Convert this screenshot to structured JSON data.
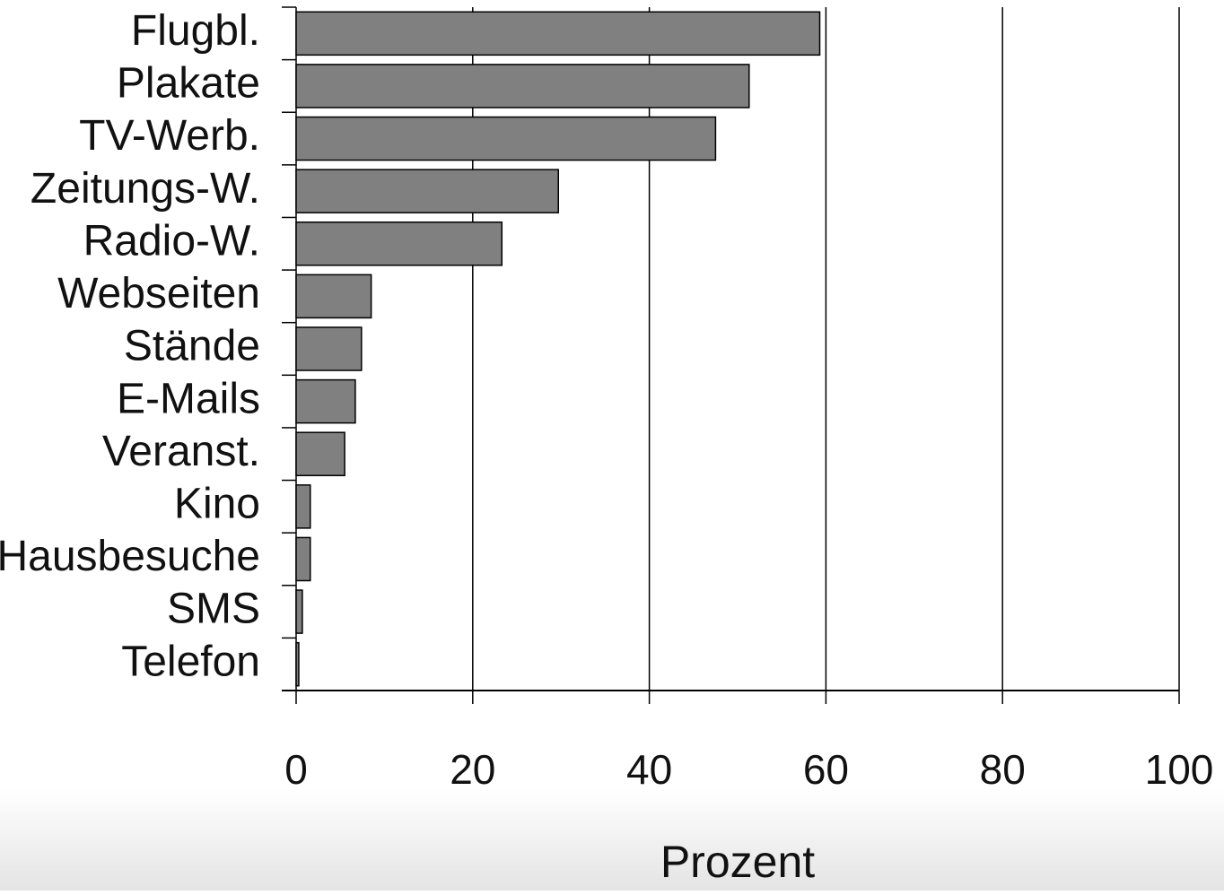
{
  "chart_data": {
    "type": "barh",
    "categories": [
      "Flugbl.",
      "Plakate",
      "TV-Werb.",
      "Zeitungs-W.",
      "Radio-W.",
      "Webseiten",
      "Stände",
      "E-Mails",
      "Veranst.",
      "Kino",
      "Hausbesuche",
      "SMS",
      "Telefon"
    ],
    "values": [
      59.3,
      51.3,
      47.5,
      29.7,
      23.3,
      8.5,
      7.4,
      6.7,
      5.5,
      1.6,
      1.6,
      0.7,
      0.3
    ],
    "color": "#808080",
    "xlabel": "Prozent",
    "xlim": [
      0,
      100
    ],
    "xticks": [
      0,
      20,
      40,
      60,
      80,
      100
    ],
    "grid": true
  }
}
